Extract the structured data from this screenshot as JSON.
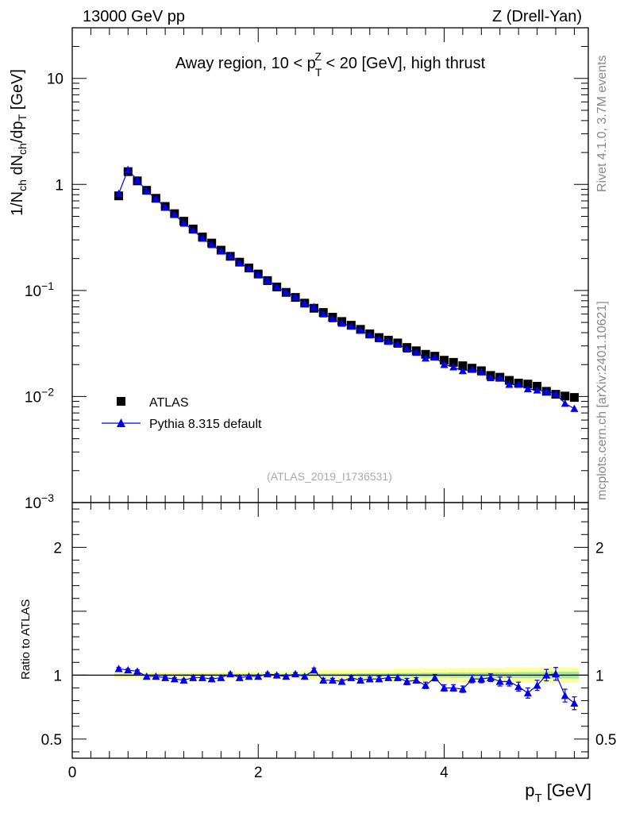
{
  "header": {
    "left": "13000 GeV pp",
    "right": "Z (Drell-Yan)"
  },
  "side": {
    "rivet": "Rivet 4.1.0,  3.7M events",
    "mcplots": "mcplots.cern.ch [arXiv:2401.10621]"
  },
  "chart_data": [
    {
      "type": "scatter",
      "panel": "main",
      "title": "Away region, 10 < p_T^Z < 20 [GeV], high thrust",
      "title_parts": {
        "pre": "Away region, 10 < p",
        "sup": "Z",
        "sub": "T",
        "post": " < 20 [GeV], high thrust"
      },
      "ylabel": "1/N_ch dN_ch/dp_T [GeV]",
      "xlabel": "p_T [GeV]",
      "yscale": "log",
      "xlim": [
        0,
        5.55
      ],
      "ylim": [
        0.001,
        30
      ],
      "x_ticks": [
        "0",
        "2",
        "4"
      ],
      "y_ticks": [
        "10",
        "1",
        "10^-1",
        "10^-2",
        "10^-3"
      ],
      "analysis_id": "(ATLAS_2019_I1736531)",
      "legend": {
        "position": "bottom-left",
        "entries": [
          "ATLAS",
          "Pythia 8.315 default"
        ]
      },
      "x": [
        0.5,
        0.6,
        0.7,
        0.8,
        0.9,
        1.0,
        1.1,
        1.2,
        1.3,
        1.4,
        1.5,
        1.6,
        1.7,
        1.8,
        1.9,
        2.0,
        2.1,
        2.2,
        2.3,
        2.4,
        2.5,
        2.6,
        2.7,
        2.8,
        2.9,
        3.0,
        3.1,
        3.2,
        3.3,
        3.4,
        3.5,
        3.6,
        3.7,
        3.8,
        3.9,
        4.0,
        4.1,
        4.2,
        4.3,
        4.4,
        4.5,
        4.6,
        4.7,
        4.8,
        4.9,
        5.0,
        5.1,
        5.2,
        5.3,
        5.4
      ],
      "series": [
        {
          "name": "ATLAS",
          "color": "#000000",
          "marker": "square",
          "values": [
            0.78,
            1.32,
            1.08,
            0.88,
            0.74,
            0.62,
            0.53,
            0.45,
            0.38,
            0.32,
            0.28,
            0.24,
            0.21,
            0.185,
            0.163,
            0.143,
            0.124,
            0.108,
            0.096,
            0.086,
            0.076,
            0.068,
            0.062,
            0.056,
            0.051,
            0.047,
            0.043,
            0.039,
            0.036,
            0.034,
            0.032,
            0.029,
            0.027,
            0.025,
            0.024,
            0.022,
            0.021,
            0.0195,
            0.0185,
            0.0175,
            0.0158,
            0.0152,
            0.0142,
            0.0134,
            0.0131,
            0.0125,
            0.0112,
            0.0105,
            0.0101,
            0.0098
          ]
        },
        {
          "name": "Pythia 8.315 default",
          "color": "#0000ee",
          "marker": "triangle",
          "values": [
            0.82,
            1.38,
            1.1,
            0.87,
            0.73,
            0.61,
            0.52,
            0.43,
            0.37,
            0.31,
            0.27,
            0.235,
            0.213,
            0.182,
            0.161,
            0.142,
            0.125,
            0.108,
            0.096,
            0.087,
            0.075,
            0.07,
            0.06,
            0.054,
            0.049,
            0.046,
            0.042,
            0.038,
            0.035,
            0.033,
            0.031,
            0.028,
            0.026,
            0.023,
            0.0235,
            0.02,
            0.019,
            0.0175,
            0.018,
            0.017,
            0.015,
            0.015,
            0.013,
            0.013,
            0.0118,
            0.0115,
            0.0112,
            0.0106,
            0.0086,
            0.0077
          ]
        }
      ]
    },
    {
      "type": "scatter",
      "panel": "ratio",
      "ylabel": "Ratio to ATLAS",
      "xlabel": "p_T [GeV]",
      "xlim": [
        0,
        5.55
      ],
      "ylim": [
        0.35,
        2.35
      ],
      "y_ticks": [
        "2",
        "1",
        "0.5"
      ],
      "reference_band": {
        "inner_color": "#99ee99",
        "outer_color": "#ffff99",
        "inner_halfwidth": [
          0.01,
          0.01,
          0.01,
          0.01,
          0.01,
          0.01,
          0.01,
          0.01,
          0.01,
          0.01,
          0.01,
          0.01,
          0.01,
          0.01,
          0.01,
          0.01,
          0.01,
          0.01,
          0.01,
          0.01,
          0.012,
          0.012,
          0.012,
          0.012,
          0.012,
          0.012,
          0.014,
          0.014,
          0.014,
          0.014,
          0.016,
          0.016,
          0.016,
          0.018,
          0.018,
          0.018,
          0.02,
          0.02,
          0.02,
          0.02,
          0.022,
          0.022,
          0.022,
          0.024,
          0.024,
          0.024,
          0.026,
          0.026,
          0.026,
          0.026
        ],
        "outer_halfwidth": [
          0.025,
          0.025,
          0.025,
          0.025,
          0.025,
          0.025,
          0.025,
          0.025,
          0.025,
          0.025,
          0.025,
          0.025,
          0.028,
          0.028,
          0.028,
          0.028,
          0.03,
          0.03,
          0.03,
          0.03,
          0.035,
          0.035,
          0.04,
          0.04,
          0.04,
          0.04,
          0.045,
          0.045,
          0.045,
          0.045,
          0.05,
          0.05,
          0.05,
          0.05,
          0.05,
          0.05,
          0.05,
          0.055,
          0.055,
          0.055,
          0.055,
          0.055,
          0.06,
          0.06,
          0.06,
          0.06,
          0.06,
          0.06,
          0.06,
          0.06
        ]
      },
      "series": [
        {
          "name": "Pythia 8.315 default",
          "color": "#0000ee",
          "marker": "triangle",
          "values": [
            1.05,
            1.04,
            1.03,
            0.99,
            0.99,
            0.98,
            0.97,
            0.96,
            0.98,
            0.98,
            0.97,
            0.98,
            1.01,
            0.98,
            0.99,
            0.99,
            1.01,
            1.0,
            0.99,
            1.01,
            0.99,
            1.04,
            0.96,
            0.96,
            0.95,
            0.98,
            0.96,
            0.97,
            0.97,
            0.98,
            0.98,
            0.95,
            0.96,
            0.92,
            0.98,
            0.9,
            0.9,
            0.89,
            0.97,
            0.97,
            0.98,
            0.95,
            0.95,
            0.91,
            0.86,
            0.92,
            1.0,
            1.01,
            0.84,
            0.78
          ],
          "errors": [
            0.01,
            0.01,
            0.01,
            0.01,
            0.01,
            0.01,
            0.01,
            0.01,
            0.01,
            0.01,
            0.01,
            0.01,
            0.01,
            0.01,
            0.01,
            0.01,
            0.01,
            0.01,
            0.01,
            0.01,
            0.012,
            0.015,
            0.015,
            0.015,
            0.015,
            0.015,
            0.015,
            0.015,
            0.02,
            0.02,
            0.02,
            0.025,
            0.02,
            0.025,
            0.025,
            0.025,
            0.025,
            0.025,
            0.03,
            0.03,
            0.03,
            0.035,
            0.035,
            0.035,
            0.04,
            0.04,
            0.045,
            0.05,
            0.05,
            0.05
          ]
        }
      ]
    }
  ]
}
